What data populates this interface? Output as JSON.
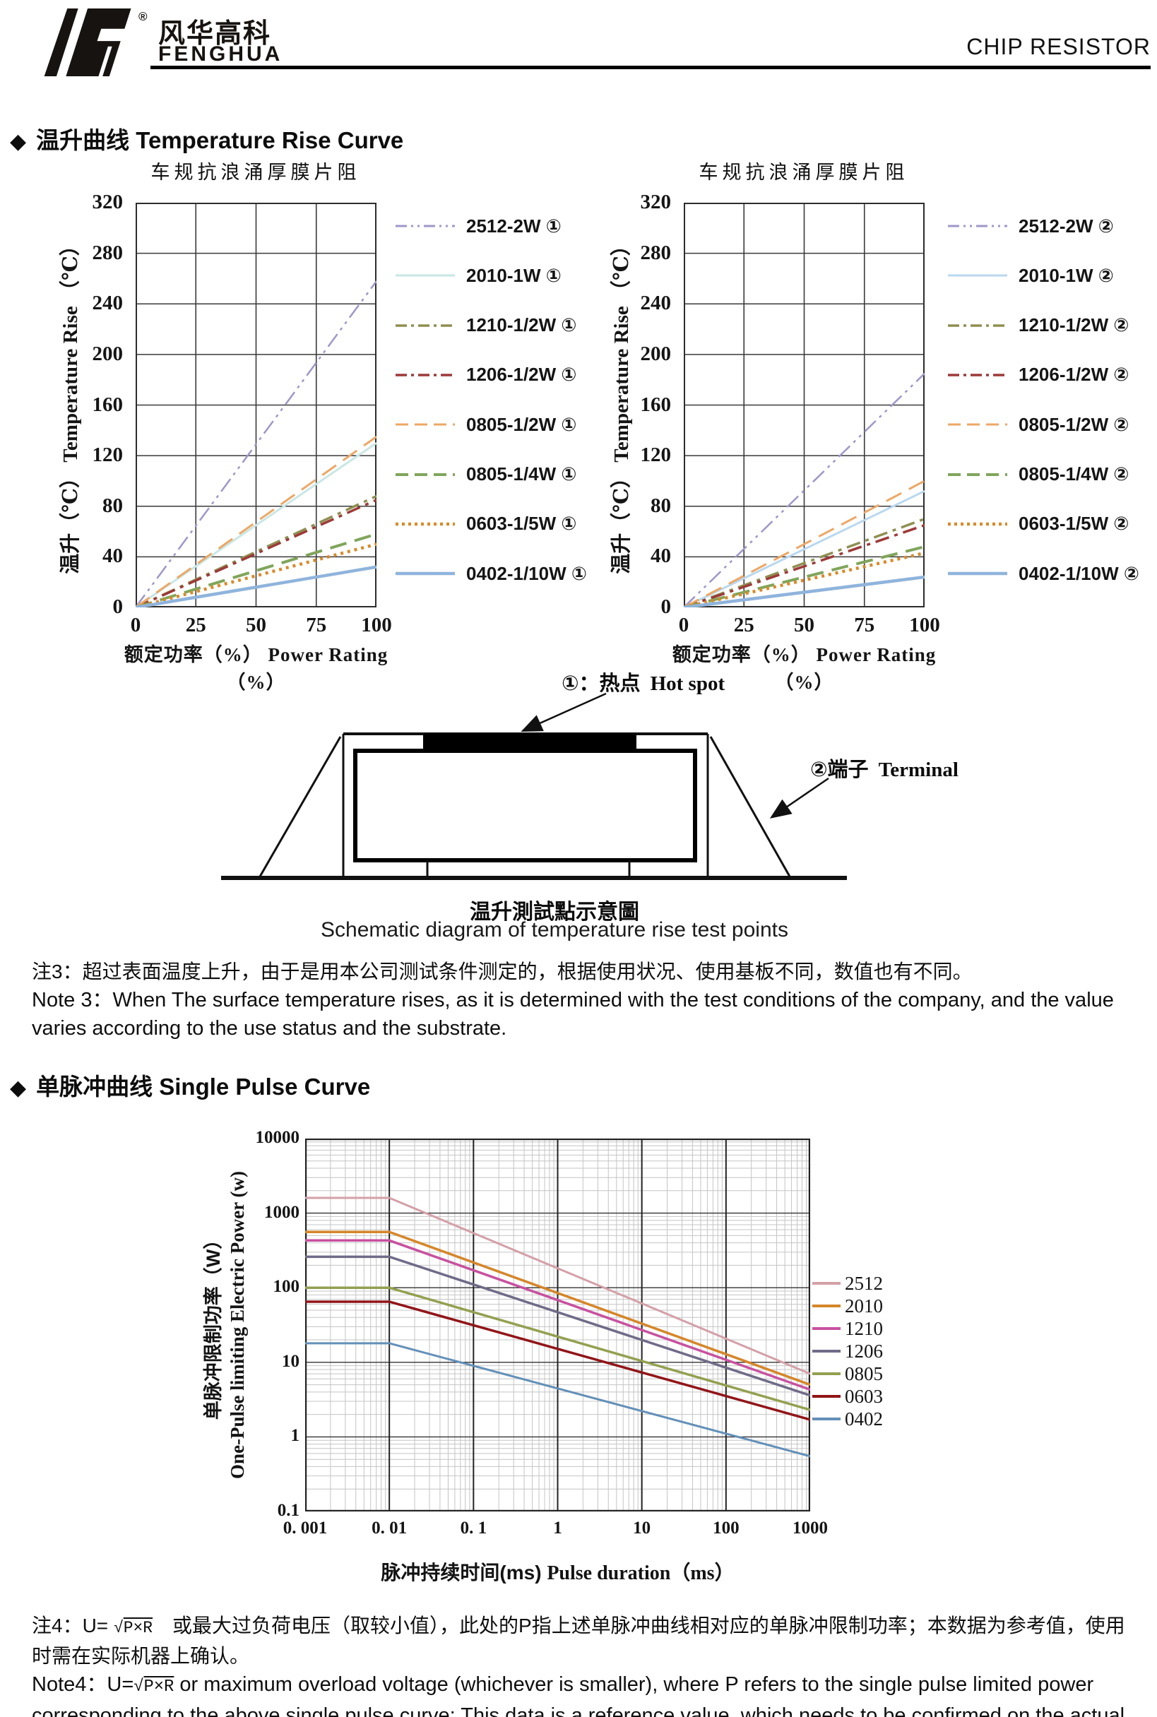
{
  "header": {
    "logo_cn": "风华高科",
    "logo_en": "FENGHUA",
    "registered": "®",
    "page_title": "CHIP RESISTOR"
  },
  "sections": {
    "temp": {
      "bullet": "◆",
      "cn": "温升曲线",
      "en": "Temperature Rise Curve"
    },
    "pulse": {
      "bullet": "◆",
      "cn": "单脉冲曲线",
      "en": "Single Pulse Curve"
    }
  },
  "temp_axis": {
    "title": "车规抗浪涌厚膜片阻",
    "y_combined": "温升（℃）  Temperature Rise （℃）",
    "x_combined": "额定功率（%）   Power Rating（%）",
    "yticks": [
      320,
      280,
      240,
      200,
      160,
      120,
      80,
      40,
      0
    ],
    "xticks": [
      0,
      25,
      50,
      75,
      100
    ]
  },
  "schematic": {
    "hotspot_cn": "①：热点",
    "hotspot_en": "Hot spot",
    "terminal_cn": "②端子",
    "terminal_en": "Terminal",
    "caption_cn": "温升測試點示意圖",
    "caption_en": "Schematic diagram of temperature rise test points"
  },
  "notes": {
    "note3_cn": "注3：超过表面温度上升，由于是用本公司测试条件测定的，根据使用状况、使用基板不同，数值也有不同。",
    "note3_en": "Note 3：When The surface temperature rises, as it is determined with the test conditions of the company, and the value varies according to the use status and the substrate.",
    "note4_cn_prefix": "注4：U= ",
    "note4_formula": "P×R",
    "note4_cn_suffix": "　或最大过负荷电压（取较小值），此处的P指上述单脉冲曲线相对应的单脉冲限制功率；本数据为参考值，使用时需在实际机器上确认。",
    "note4_en_prefix": "Note4：U=",
    "note4_en_suffix": " or maximum overload voltage (whichever is smaller), where P refers to the single pulse limited power corresponding to the above single pulse curve; This data is a reference value, which needs to be confirmed on the actual machine."
  },
  "pulse_axis": {
    "ylabel_cn": "单脉冲限制功率（W）",
    "ylabel_en": "One-Pulse limiting Electric Power (w)",
    "xlabel_cn": "脉冲持续时间(ms)",
    "xlabel_en": "Pulse duration（ms）",
    "ytick_labels": [
      "10000",
      "1000",
      "100",
      "10",
      "1",
      "0.1"
    ],
    "xtick_labels": [
      "0. 001",
      "0. 01",
      "0. 1",
      "1",
      "10",
      "100",
      "1000"
    ]
  },
  "chart_data": [
    {
      "id": "temp-left",
      "type": "line",
      "title": "车规抗浪涌厚膜片阻",
      "xlabel": "额定功率（%） Power Rating（%）",
      "ylabel": "温升（℃） Temperature Rise（℃）",
      "xlim": [
        0,
        100
      ],
      "ylim": [
        0,
        320
      ],
      "grid": true,
      "legend_position": "right",
      "x": [
        0,
        100
      ],
      "series": [
        {
          "name": "2512-2W ①",
          "values": [
            0,
            258
          ],
          "color": "#9e97c9",
          "dash": "dashdotdot",
          "w": 2.5
        },
        {
          "name": "2010-1W ①",
          "values": [
            0,
            130
          ],
          "color": "#c9e7e4",
          "dash": "solid",
          "w": 3
        },
        {
          "name": "1210-1/2W ①",
          "values": [
            0,
            88
          ],
          "color": "#8f8f52",
          "dash": "dashdot",
          "w": 3.5
        },
        {
          "name": "1206-1/2W ①",
          "values": [
            0,
            85
          ],
          "color": "#9c3a38",
          "dash": "dashdot",
          "w": 3.5
        },
        {
          "name": "0805-1/2W ①",
          "values": [
            0,
            135
          ],
          "color": "#eda765",
          "dash": "longdash",
          "w": 3
        },
        {
          "name": "0805-1/4W ①",
          "values": [
            0,
            58
          ],
          "color": "#80a55b",
          "dash": "longdash",
          "w": 4
        },
        {
          "name": "0603-1/5W ①",
          "values": [
            0,
            50
          ],
          "color": "#d98a2b",
          "dash": "dotted",
          "w": 4.5
        },
        {
          "name": "0402-1/10W ①",
          "values": [
            0,
            32
          ],
          "color": "#8fb4dc",
          "dash": "solid",
          "w": 4.5
        }
      ]
    },
    {
      "id": "temp-right",
      "type": "line",
      "title": "车规抗浪涌厚膜片阻",
      "xlabel": "额定功率（%） Power Rating（%）",
      "ylabel": "温升（℃） Temperature Rise（℃）",
      "xlim": [
        0,
        100
      ],
      "ylim": [
        0,
        320
      ],
      "grid": true,
      "legend_position": "right",
      "x": [
        0,
        100
      ],
      "series": [
        {
          "name": "2512-2W ②",
          "values": [
            0,
            185
          ],
          "color": "#9e97c9",
          "dash": "dashdotdot",
          "w": 2.5
        },
        {
          "name": "2010-1W ②",
          "values": [
            0,
            92
          ],
          "color": "#b9d8ef",
          "dash": "solid",
          "w": 3
        },
        {
          "name": "1210-1/2W ②",
          "values": [
            0,
            70
          ],
          "color": "#8f8f52",
          "dash": "dashdot",
          "w": 3.5
        },
        {
          "name": "1206-1/2W ②",
          "values": [
            0,
            65
          ],
          "color": "#9c3a38",
          "dash": "dashdot",
          "w": 3.5
        },
        {
          "name": "0805-1/2W ②",
          "values": [
            0,
            100
          ],
          "color": "#eda765",
          "dash": "longdash",
          "w": 3
        },
        {
          "name": "0805-1/4W ②",
          "values": [
            0,
            48
          ],
          "color": "#80a55b",
          "dash": "longdash",
          "w": 4
        },
        {
          "name": "0603-1/5W ②",
          "values": [
            0,
            43
          ],
          "color": "#d98a2b",
          "dash": "dotted",
          "w": 4.5
        },
        {
          "name": "0402-1/10W ②",
          "values": [
            0,
            24
          ],
          "color": "#8fb4dc",
          "dash": "solid",
          "w": 4.5
        }
      ]
    },
    {
      "id": "pulse",
      "type": "line",
      "logx": true,
      "logy": true,
      "title": "",
      "xlabel": "脉冲持续时间(ms) Pulse duration（ms）",
      "ylabel": "单脉冲限制功率（W） One-Pulse limiting Electric Power (w)",
      "xlim": [
        0.001,
        1000
      ],
      "ylim": [
        0.1,
        10000
      ],
      "grid": true,
      "legend_position": "right",
      "series": [
        {
          "name": "2512",
          "x": [
            0.001,
            0.01,
            1000
          ],
          "values": [
            1600,
            1600,
            7
          ],
          "color": "#d4a0a8",
          "w": 3
        },
        {
          "name": "2010",
          "x": [
            0.001,
            0.01,
            1000
          ],
          "values": [
            560,
            560,
            5
          ],
          "color": "#d5862a",
          "w": 3.5
        },
        {
          "name": "1210",
          "x": [
            0.001,
            0.01,
            1000
          ],
          "values": [
            430,
            430,
            4.3
          ],
          "color": "#c8519f",
          "w": 3.5
        },
        {
          "name": "1206",
          "x": [
            0.001,
            0.01,
            1000
          ],
          "values": [
            260,
            260,
            3.6
          ],
          "color": "#6f6b88",
          "w": 3.5
        },
        {
          "name": "0805",
          "x": [
            0.001,
            0.01,
            1000
          ],
          "values": [
            100,
            100,
            2.3
          ],
          "color": "#93a050",
          "w": 3.5
        },
        {
          "name": "0603",
          "x": [
            0.001,
            0.01,
            1000
          ],
          "values": [
            65,
            65,
            1.7
          ],
          "color": "#911518",
          "w": 3.5
        },
        {
          "name": "0402",
          "x": [
            0.001,
            0.01,
            1000
          ],
          "values": [
            18,
            18,
            0.55
          ],
          "color": "#6390b8",
          "w": 3
        }
      ]
    }
  ]
}
